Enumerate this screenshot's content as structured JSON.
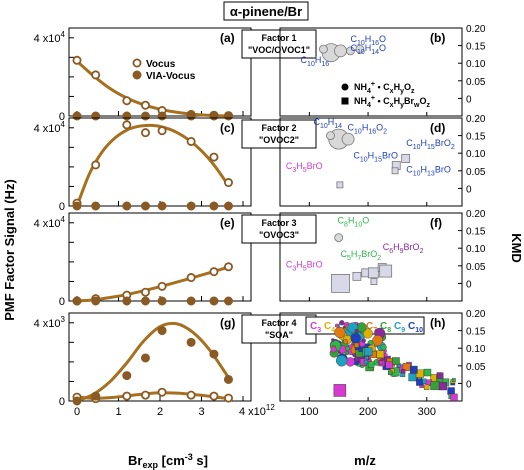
{
  "figure_title": "α-pinene/Br",
  "left_ylabel": "PMF Factor Signal (Hz)",
  "right_ylabel": "KMD",
  "left_xlabel": "Br",
  "left_xlabel_sub": "exp",
  "left_xlabel_unit": "[cm",
  "left_xlabel_exp": "-3",
  "left_xlabel_tail": " s]",
  "right_xlabel": "m/z",
  "colors": {
    "vocus_fill": "#ffffff",
    "via_fill": "#8a5a24",
    "marker_edge": "#8a5a24",
    "fit": "#a6701f",
    "label_blue": "#1f3fbf",
    "label_magenta": "#d63ad1",
    "label_green": "#2db84a",
    "label_purple": "#8a2a9e"
  },
  "chart_data": [
    {
      "type": "scatter",
      "panel": "(a)",
      "factor": "Factor 1",
      "factor_desc": "\"VOC/OVOC1\"",
      "xlim": [
        0,
        4000000000000.0
      ],
      "ylim": [
        0,
        45000
      ],
      "ytick_values": [
        0,
        10000,
        20000,
        30000,
        40000
      ],
      "ytick_labels": [
        "0",
        "",
        "",
        "",
        "4 x10"
      ],
      "ytick_exp": "4",
      "series": [
        {
          "name": "Vocus",
          "x": [
            0,
            450000000000.0,
            1200000000000.0,
            1650000000000.0,
            2050000000000.0,
            2750000000000.0,
            3300000000000.0,
            3650000000000.0
          ],
          "y": [
            28500,
            21000,
            7800,
            5500,
            2800,
            800,
            400,
            200
          ]
        },
        {
          "name": "VIA-Vocus",
          "x": [
            0,
            450000000000.0,
            1200000000000.0,
            1650000000000.0,
            2050000000000.0,
            2750000000000.0,
            3300000000000.0,
            3650000000000.0
          ],
          "y": [
            0,
            0,
            0,
            0,
            0,
            0,
            0,
            0
          ]
        }
      ],
      "fit": {
        "x": [
          0,
          400000000000.0,
          800000000000.0,
          1200000000000.0,
          1600000000000.0,
          2000000000000.0,
          2400000000000.0,
          2800000000000.0,
          3200000000000.0,
          3600000000000.0
        ],
        "y": [
          28000,
          20500,
          14000,
          9200,
          5800,
          3500,
          1900,
          900,
          300,
          0
        ]
      }
    },
    {
      "type": "scatter",
      "panel": "(c)",
      "factor": "Factor 2",
      "factor_desc": "\"OVOC2\"",
      "xlim": [
        0,
        4000000000000.0
      ],
      "ylim": [
        0,
        45000
      ],
      "ytick_values": [
        0,
        10000,
        20000,
        30000,
        40000
      ],
      "ytick_labels": [
        "0",
        "",
        "",
        "",
        "4 x10"
      ],
      "ytick_exp": "4",
      "series": [
        {
          "name": "Vocus",
          "x": [
            0,
            450000000000.0,
            1200000000000.0,
            1650000000000.0,
            2050000000000.0,
            2750000000000.0,
            3300000000000.0,
            3650000000000.0
          ],
          "y": [
            1500,
            21000,
            41500,
            37500,
            38500,
            33000,
            25000,
            12000
          ]
        },
        {
          "name": "VIA-Vocus",
          "x": [
            0,
            450000000000.0,
            1200000000000.0,
            1650000000000.0,
            2050000000000.0,
            2750000000000.0,
            3300000000000.0,
            3650000000000.0
          ],
          "y": [
            0,
            0,
            0,
            0,
            0,
            0,
            0,
            0
          ]
        }
      ],
      "fit": {
        "x": [
          0,
          300000000000.0,
          600000000000.0,
          900000000000.0,
          1200000000000.0,
          1500000000000.0,
          1800000000000.0,
          2100000000000.0,
          2400000000000.0,
          2700000000000.0,
          3000000000000.0,
          3300000000000.0,
          3600000000000.0
        ],
        "y": [
          0,
          16500,
          27500,
          34500,
          38800,
          40800,
          41200,
          40200,
          37700,
          33700,
          28200,
          21000,
          12000
        ]
      }
    },
    {
      "type": "scatter",
      "panel": "(e)",
      "factor": "Factor 3",
      "factor_desc": "\"OVOC3\"",
      "xlim": [
        0,
        4000000000000.0
      ],
      "ylim": [
        0,
        45000
      ],
      "ytick_values": [
        0,
        10000,
        20000,
        30000,
        40000
      ],
      "ytick_labels": [
        "0",
        "",
        "",
        "",
        "4 x10"
      ],
      "ytick_exp": "4",
      "series": [
        {
          "name": "Vocus",
          "x": [
            0,
            450000000000.0,
            1200000000000.0,
            1650000000000.0,
            2050000000000.0,
            2750000000000.0,
            3300000000000.0,
            3650000000000.0
          ],
          "y": [
            0,
            1200,
            3000,
            4500,
            7500,
            12000,
            15000,
            17500
          ]
        },
        {
          "name": "VIA-Vocus",
          "x": [
            0,
            450000000000.0,
            1200000000000.0,
            1650000000000.0,
            2050000000000.0,
            2750000000000.0,
            3300000000000.0,
            3650000000000.0
          ],
          "y": [
            0,
            0,
            0,
            0,
            0,
            0,
            0,
            0
          ]
        }
      ],
      "fit": {
        "x": [
          0,
          400000000000.0,
          800000000000.0,
          1200000000000.0,
          1600000000000.0,
          2000000000000.0,
          2400000000000.0,
          2800000000000.0,
          3200000000000.0,
          3650000000000.0
        ],
        "y": [
          0,
          600,
          1800,
          3300,
          5200,
          7300,
          9600,
          12000,
          14500,
          17300
        ]
      }
    },
    {
      "type": "scatter",
      "panel": "(g)",
      "factor": "Factor 4",
      "factor_desc": "\"SOA\"",
      "xlim": [
        0,
        4000000000000.0
      ],
      "ylim": [
        0,
        4500
      ],
      "ytick_values": [
        0,
        1000,
        2000,
        3000,
        4000
      ],
      "ytick_labels": [
        "0",
        "",
        "",
        "",
        "4 x10"
      ],
      "ytick_exp": "3",
      "series": [
        {
          "name": "Vocus",
          "x": [
            0,
            450000000000.0,
            1200000000000.0,
            1650000000000.0,
            2050000000000.0,
            2750000000000.0,
            3300000000000.0,
            3650000000000.0
          ],
          "y": [
            200,
            120,
            250,
            300,
            450,
            300,
            250,
            150
          ]
        },
        {
          "name": "VIA-Vocus",
          "x": [
            0,
            450000000000.0,
            1200000000000.0,
            1650000000000.0,
            2050000000000.0,
            2750000000000.0,
            3300000000000.0,
            3650000000000.0
          ],
          "y": [
            0,
            250,
            1300,
            2200,
            3600,
            3000,
            2400,
            1100
          ]
        }
      ],
      "fits": [
        {
          "x": [
            0,
            400000000000.0,
            800000000000.0,
            1200000000000.0,
            1600000000000.0,
            2000000000000.0,
            2400000000000.0,
            2800000000000.0,
            3200000000000.0,
            3650000000000.0
          ],
          "y": [
            0,
            350,
            1000,
            1950,
            3050,
            3800,
            3950,
            3500,
            2600,
            1200
          ]
        },
        {
          "x": [
            0,
            400000000000.0,
            800000000000.0,
            1200000000000.0,
            1600000000000.0,
            2000000000000.0,
            2400000000000.0,
            2800000000000.0,
            3200000000000.0,
            3650000000000.0
          ],
          "y": [
            200,
            140,
            170,
            260,
            360,
            420,
            400,
            330,
            240,
            120
          ]
        }
      ]
    }
  ],
  "xticks": [
    {
      "value": 0,
      "label": "0"
    },
    {
      "value": 1000000000000.0,
      "label": "1"
    },
    {
      "value": 2000000000000.0,
      "label": "2"
    },
    {
      "value": 3000000000000.0,
      "label": "3"
    },
    {
      "value": 4000000000000.0,
      "label": "4 x10",
      "exp": "12"
    }
  ],
  "right_panels": [
    {
      "panel": "(b)",
      "ylim": [
        -0.05,
        0.2
      ],
      "yticks": [
        "0.20",
        "0.15",
        "0.10",
        "0.05",
        "0"
      ],
      "labels": [
        {
          "main": "C",
          "sub": "10",
          "main2": "H",
          "sub2": "16",
          "main3": "O",
          "sub3": "",
          "color": "#1f3fbf",
          "x": 170,
          "y": 0.16
        },
        {
          "main": "C",
          "sub": "10",
          "main2": "H",
          "sub2": "14",
          "main3": "O",
          "sub3": "",
          "color": "#1f3fbf",
          "x": 170,
          "y": 0.135
        },
        {
          "main": "C",
          "sub": "10",
          "main2": "H",
          "sub2": "16",
          "main3": "",
          "sub3": "",
          "color": "#1f3fbf",
          "x": 85,
          "y": 0.1
        }
      ],
      "legend": [
        {
          "marker": "circle",
          "text": "NH",
          "sub": "4",
          "sup": "+",
          "tail": " • C",
          "t1": "x",
          "t2": "H",
          "t3": "y",
          "t4": "O",
          "t5": "z"
        },
        {
          "marker": "square",
          "text": "NH",
          "sub": "4",
          "sup": "+",
          "tail": " • C",
          "t1": "x",
          "t2": "H",
          "t3": "y",
          "t4": "Br",
          "t5": "w",
          "t6": "O",
          "t7": "z"
        }
      ],
      "points": [
        {
          "shape": "circle",
          "mz": 137,
          "kmd": 0.13,
          "size": 9
        },
        {
          "shape": "circle",
          "mz": 153,
          "kmd": 0.135,
          "size": 6
        },
        {
          "shape": "circle",
          "mz": 170,
          "kmd": 0.135,
          "size": 4
        },
        {
          "shape": "circle",
          "mz": 186,
          "kmd": 0.14,
          "size": 4
        },
        {
          "shape": "circle",
          "mz": 124,
          "kmd": 0.14,
          "size": 4
        }
      ]
    },
    {
      "panel": "(d)",
      "ylim": [
        -0.05,
        0.2
      ],
      "yticks": [
        "0.20",
        "0.15",
        "0.10",
        "0.05",
        "0"
      ],
      "labels": [
        {
          "main": "C",
          "sub": "10",
          "main2": "H",
          "sub2": "14",
          "main3": "",
          "sub3": "",
          "color": "#1f3fbf",
          "x": 107,
          "y": 0.18
        },
        {
          "main": "C",
          "sub": "10",
          "main2": "H",
          "sub2": "16",
          "main3": "O",
          "sub3": "2",
          "color": "#1f3fbf",
          "x": 165,
          "y": 0.165
        },
        {
          "main": "C",
          "sub": "10",
          "main2": "H",
          "sub2": "15",
          "main3": "BrO",
          "sub3": "2",
          "color": "#1f3fbf",
          "x": 265,
          "y": 0.12
        },
        {
          "main": "C",
          "sub": "10",
          "main2": "H",
          "sub2": "15",
          "main3": "BrO",
          "sub3": "",
          "color": "#1f3fbf",
          "x": 175,
          "y": 0.085
        },
        {
          "main": "C",
          "sub": "10",
          "main2": "H",
          "sub2": "13",
          "main3": "BrO",
          "sub3": "",
          "color": "#1f3fbf",
          "x": 265,
          "y": 0.045
        },
        {
          "main": "C",
          "sub": "3",
          "main2": "H",
          "sub2": "5",
          "main3": "BrO",
          "sub3": "",
          "color": "#d63ad1",
          "x": 60,
          "y": 0.055
        }
      ],
      "points": [
        {
          "shape": "circle",
          "mz": 150,
          "kmd": 0.14,
          "size": 10
        },
        {
          "shape": "circle",
          "mz": 166,
          "kmd": 0.14,
          "size": 6
        },
        {
          "shape": "circle",
          "mz": 136,
          "kmd": 0.15,
          "size": 4
        },
        {
          "shape": "square",
          "mz": 248,
          "kmd": 0.065,
          "size": 4
        },
        {
          "shape": "square",
          "mz": 264,
          "kmd": 0.085,
          "size": 4
        },
        {
          "shape": "square",
          "mz": 246,
          "kmd": 0.05,
          "size": 3
        },
        {
          "shape": "square",
          "mz": 152,
          "kmd": 0.01,
          "size": 3
        }
      ]
    },
    {
      "panel": "(f)",
      "ylim": [
        -0.05,
        0.2
      ],
      "yticks": [
        "0.20",
        "0.15",
        "0.10",
        "0.05",
        "0"
      ],
      "labels": [
        {
          "main": "C",
          "sub": "8",
          "main2": "H",
          "sub2": "10",
          "main3": "O",
          "sub3": "",
          "color": "#2db84a",
          "x": 148,
          "y": 0.17
        },
        {
          "main": "C",
          "sub": "5",
          "main2": "H",
          "sub2": "7",
          "main3": "BrO",
          "sub3": "2",
          "color": "#2db84a",
          "x": 153,
          "y": 0.075
        },
        {
          "main": "C",
          "sub": "6",
          "main2": "H",
          "sub2": "9",
          "main3": "BrO",
          "sub3": "2",
          "color": "#8a2a9e",
          "x": 225,
          "y": 0.095
        },
        {
          "main": "C",
          "sub": "3",
          "main2": "H",
          "sub2": "5",
          "main3": "BrO",
          "sub3": "",
          "color": "#d63ad1",
          "x": 60,
          "y": 0.045
        }
      ],
      "points": [
        {
          "shape": "circle",
          "mz": 150,
          "kmd": 0.13,
          "size": 4
        },
        {
          "shape": "square",
          "mz": 153,
          "kmd": 0.0,
          "size": 9
        },
        {
          "shape": "square",
          "mz": 181,
          "kmd": 0.02,
          "size": 4
        },
        {
          "shape": "square",
          "mz": 196,
          "kmd": 0.03,
          "size": 4
        },
        {
          "shape": "square",
          "mz": 209,
          "kmd": 0.03,
          "size": 5
        },
        {
          "shape": "square",
          "mz": 224,
          "kmd": 0.045,
          "size": 4
        },
        {
          "shape": "square",
          "mz": 230,
          "kmd": 0.035,
          "size": 6
        },
        {
          "shape": "square",
          "mz": 210,
          "kmd": 0.005,
          "size": 3
        }
      ]
    },
    {
      "panel": "(h)",
      "ylim": [
        -0.05,
        0.2
      ],
      "yticks": [
        "0.20",
        "0.15",
        "0.10",
        "0.05",
        "0"
      ],
      "legend_carbons": [
        {
          "c": "C",
          "n": "3",
          "color": "#d63ad1"
        },
        {
          "c": "C",
          "n": "4",
          "color": "#e0b000"
        },
        {
          "c": "C",
          "n": "5",
          "color": "#2db84a"
        },
        {
          "c": "C",
          "n": "6",
          "color": "#8a2a9e"
        },
        {
          "c": "C",
          "n": "7",
          "color": "#e07a10"
        },
        {
          "c": "C",
          "n": "8",
          "color": "#3a9e3a"
        },
        {
          "c": "C",
          "n": "9",
          "color": "#20a0c0"
        },
        {
          "c": "C",
          "n": "10",
          "color": "#1f3fbf"
        }
      ]
    }
  ]
}
